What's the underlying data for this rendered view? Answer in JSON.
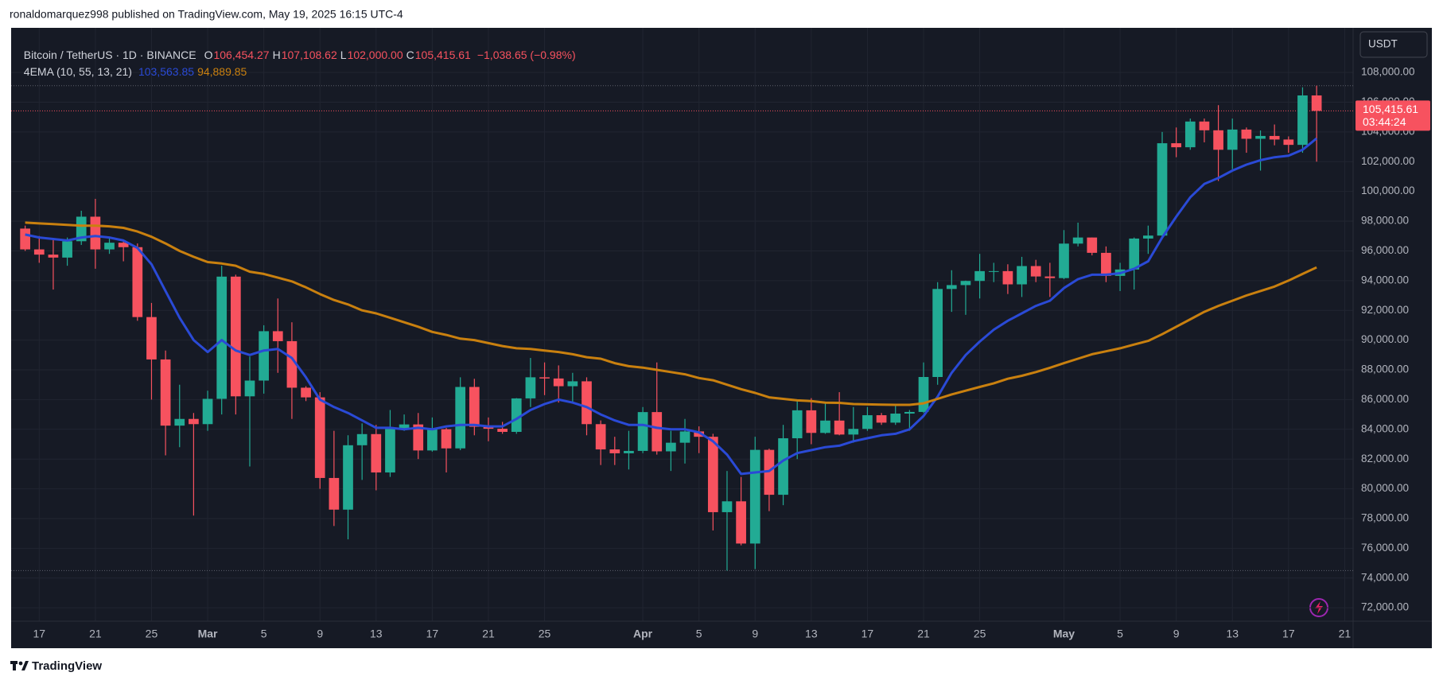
{
  "chart_data": {
    "type": "candlestick",
    "published_note": "ronaldomarquez998 published on TradingView.com, May 19, 2025 16:15 UTC-4",
    "brand": "TradingView",
    "currency": "USDT",
    "series": [
      {
        "name": "Bitcoin / TetherUS · 1D · BINANCE",
        "up_color": "#22ab94",
        "down_color": "#f7525f",
        "open": [
          97500,
          96100,
          95750,
          95550,
          96650,
          98300,
          96100,
          96550,
          96250,
          91550,
          88700,
          84250,
          84700,
          84350,
          86050,
          94270,
          86220,
          87280,
          90600,
          89930,
          86800,
          86150,
          80730,
          78600,
          82930,
          83680,
          81100,
          84030,
          84330,
          82580,
          84010,
          82720,
          86850,
          84170,
          84040,
          83830,
          86080,
          87500,
          87420,
          86900,
          87230,
          84350,
          82650,
          82390,
          82550,
          85160,
          82520,
          83100,
          83860,
          83500,
          78430,
          79160,
          76320,
          82620,
          79600,
          83400,
          85280,
          83760,
          84590,
          83650,
          84030,
          84950,
          84450,
          85060,
          85170,
          87520,
          93440,
          93700,
          93980,
          94640,
          94640,
          93750,
          94980,
          94280,
          94170,
          96490,
          96900,
          95870,
          94320,
          94750,
          96830,
          97030,
          103240,
          102970,
          104700,
          104110,
          102800,
          104160,
          103540,
          103730,
          103490,
          103130,
          106454.27
        ],
        "high": [
          97700,
          97000,
          96800,
          96900,
          98700,
          99500,
          96900,
          96650,
          96500,
          92500,
          89300,
          87000,
          85100,
          86600,
          95000,
          94400,
          88900,
          91000,
          92800,
          91200,
          86900,
          86500,
          83900,
          83600,
          84400,
          84300,
          85300,
          85000,
          85100,
          84800,
          84100,
          87500,
          87400,
          84800,
          84500,
          86100,
          88800,
          88500,
          88300,
          87800,
          87500,
          84600,
          83500,
          83900,
          85500,
          88500,
          83900,
          84700,
          84200,
          83700,
          81200,
          80800,
          83500,
          82700,
          84300,
          85900,
          86100,
          85800,
          86500,
          85500,
          85500,
          85100,
          85600,
          85300,
          88500,
          93900,
          94700,
          94000,
          95800,
          95200,
          95100,
          95600,
          95400,
          95200,
          97400,
          97900,
          96900,
          96300,
          95200,
          96900,
          97700,
          104000,
          104300,
          104900,
          104900,
          105800,
          104900,
          104300,
          104100,
          104500,
          103700,
          107000,
          107108.62
        ],
        "low": [
          96000,
          95200,
          93400,
          95000,
          96400,
          94800,
          95800,
          95300,
          91300,
          86000,
          82250,
          82800,
          78200,
          83900,
          85000,
          85000,
          81500,
          86400,
          87800,
          84700,
          85900,
          80000,
          77500,
          76600,
          80600,
          79900,
          80800,
          83900,
          82000,
          82500,
          81100,
          82600,
          83600,
          83200,
          83700,
          83700,
          85500,
          86300,
          85800,
          85800,
          83600,
          81600,
          81600,
          81300,
          82400,
          82300,
          81200,
          81700,
          82400,
          77200,
          74500,
          76200,
          74600,
          78500,
          78900,
          82000,
          83000,
          83700,
          83600,
          83100,
          83900,
          84300,
          84300,
          83900,
          85100,
          87000,
          91900,
          91700,
          92800,
          93900,
          93100,
          92900,
          93900,
          92900,
          94100,
          96300,
          95700,
          93900,
          93300,
          93400,
          95800,
          96900,
          102300,
          102800,
          103300,
          100700,
          101500,
          102600,
          101400,
          103100,
          102600,
          102600,
          102000
        ],
        "close": [
          96100,
          95750,
          95550,
          96650,
          98300,
          96100,
          96550,
          96250,
          91550,
          88700,
          84250,
          84700,
          84350,
          86050,
          94270,
          86220,
          87280,
          90600,
          89930,
          86800,
          86150,
          80730,
          78600,
          82930,
          83680,
          81100,
          84030,
          84330,
          82580,
          84010,
          82720,
          86850,
          84170,
          84040,
          83830,
          86080,
          87500,
          87420,
          86900,
          87230,
          84350,
          82650,
          82390,
          82550,
          85160,
          82520,
          83100,
          83860,
          83500,
          78430,
          79160,
          76320,
          82620,
          79600,
          83400,
          85280,
          83760,
          84590,
          83650,
          84030,
          84950,
          84450,
          85060,
          85170,
          87520,
          93440,
          93700,
          93980,
          94640,
          94640,
          93750,
          94980,
          94280,
          94170,
          96490,
          96900,
          95870,
          94320,
          94750,
          96830,
          97030,
          103240,
          102970,
          104700,
          104110,
          102800,
          104160,
          103540,
          103730,
          103490,
          103130,
          106454.27,
          105415.61
        ],
        "ohlc_legend": [
          {
            "key": "O",
            "label": "106,454.27"
          },
          {
            "key": "H",
            "label": "107,108.62"
          },
          {
            "key": "L",
            "label": "102,000.00"
          },
          {
            "key": "C",
            "label": "105,415.61"
          }
        ],
        "change_label": "−1,038.65 (−0.98%)",
        "last_price_label": "105,415.61",
        "countdown": "03:44:24"
      }
    ],
    "indicator": {
      "name": "4EMA (10, 55, 13, 21)",
      "lines": [
        {
          "color": "#2a4ad6",
          "value_label": "103,563.85",
          "values": [
            97100,
            96900,
            96800,
            96700,
            96900,
            97000,
            96900,
            96700,
            96200,
            95100,
            93300,
            91500,
            90000,
            89200,
            90000,
            89300,
            89000,
            89300,
            89400,
            88800,
            87500,
            86000,
            85500,
            85100,
            84600,
            84100,
            84100,
            84000,
            84100,
            84000,
            84200,
            84300,
            84300,
            84200,
            84200,
            84700,
            85300,
            85700,
            86000,
            85800,
            85500,
            85000,
            84600,
            84300,
            84300,
            84100,
            84000,
            84000,
            83800,
            83200,
            82300,
            81000,
            81100,
            81200,
            81900,
            82400,
            82600,
            82800,
            82900,
            83200,
            83400,
            83600,
            83700,
            84000,
            84900,
            86200,
            87800,
            89000,
            89900,
            90700,
            91300,
            91800,
            92300,
            92650,
            93500,
            94100,
            94400,
            94400,
            94500,
            94800,
            95300,
            96900,
            98300,
            99600,
            100500,
            100900,
            101400,
            101800,
            102100,
            102300,
            102400,
            102800,
            103563.85
          ]
        },
        {
          "color": "#c9800f",
          "value_label": "94,889.85",
          "values": [
            97900,
            97850,
            97800,
            97750,
            97700,
            97700,
            97650,
            97550,
            97300,
            96950,
            96500,
            96000,
            95600,
            95250,
            95150,
            95000,
            94600,
            94450,
            94200,
            93950,
            93550,
            93100,
            92700,
            92400,
            92000,
            91800,
            91500,
            91200,
            90900,
            90550,
            90350,
            90100,
            90000,
            89800,
            89600,
            89450,
            89400,
            89300,
            89200,
            89050,
            88850,
            88750,
            88450,
            88250,
            88150,
            88000,
            87850,
            87700,
            87450,
            87300,
            87000,
            86700,
            86450,
            86150,
            86050,
            85950,
            85900,
            85800,
            85780,
            85700,
            85680,
            85660,
            85650,
            85650,
            85750,
            86050,
            86350,
            86600,
            86850,
            87100,
            87400,
            87600,
            87850,
            88140,
            88450,
            88750,
            89050,
            89250,
            89450,
            89700,
            89950,
            90400,
            90900,
            91400,
            91900,
            92300,
            92650,
            93000,
            93300,
            93600,
            94000,
            94450,
            94889.85
          ]
        }
      ]
    },
    "xlim": [
      -1,
      94.6
    ],
    "xticks": [
      {
        "value": 1,
        "label": "17"
      },
      {
        "value": 5,
        "label": "21"
      },
      {
        "value": 9,
        "label": "25"
      },
      {
        "value": 13,
        "label": "Mar"
      },
      {
        "value": 17,
        "label": "5"
      },
      {
        "value": 21,
        "label": "9"
      },
      {
        "value": 25,
        "label": "13"
      },
      {
        "value": 29,
        "label": "17"
      },
      {
        "value": 33,
        "label": "21"
      },
      {
        "value": 37,
        "label": "25"
      },
      {
        "value": 44,
        "label": "Apr"
      },
      {
        "value": 48,
        "label": "5"
      },
      {
        "value": 52,
        "label": "9"
      },
      {
        "value": 56,
        "label": "13"
      },
      {
        "value": 60,
        "label": "17"
      },
      {
        "value": 64,
        "label": "21"
      },
      {
        "value": 68,
        "label": "25"
      },
      {
        "value": 74,
        "label": "May"
      },
      {
        "value": 78,
        "label": "5"
      },
      {
        "value": 82,
        "label": "9"
      },
      {
        "value": 86,
        "label": "13"
      },
      {
        "value": 90,
        "label": "17"
      },
      {
        "value": 94,
        "label": "21"
      }
    ],
    "ylim": [
      71100,
      111000
    ],
    "yticks": [
      {
        "value": 72000,
        "label": "72,000.00"
      },
      {
        "value": 74000,
        "label": "74,000.00"
      },
      {
        "value": 76000,
        "label": "76,000.00"
      },
      {
        "value": 78000,
        "label": "78,000.00"
      },
      {
        "value": 80000,
        "label": "80,000.00"
      },
      {
        "value": 82000,
        "label": "82,000.00"
      },
      {
        "value": 84000,
        "label": "84,000.00"
      },
      {
        "value": 86000,
        "label": "86,000.00"
      },
      {
        "value": 88000,
        "label": "88,000.00"
      },
      {
        "value": 90000,
        "label": "90,000.00"
      },
      {
        "value": 92000,
        "label": "92,000.00"
      },
      {
        "value": 94000,
        "label": "94,000.00"
      },
      {
        "value": 96000,
        "label": "96,000.00"
      },
      {
        "value": 98000,
        "label": "98,000.00"
      },
      {
        "value": 100000,
        "label": "100,000.00"
      },
      {
        "value": 102000,
        "label": "102,000.00"
      },
      {
        "value": 104000,
        "label": "104,000.00"
      },
      {
        "value": 106000,
        "label": "106,000.00"
      },
      {
        "value": 108000,
        "label": "108,000.00"
      }
    ],
    "grid": true
  }
}
